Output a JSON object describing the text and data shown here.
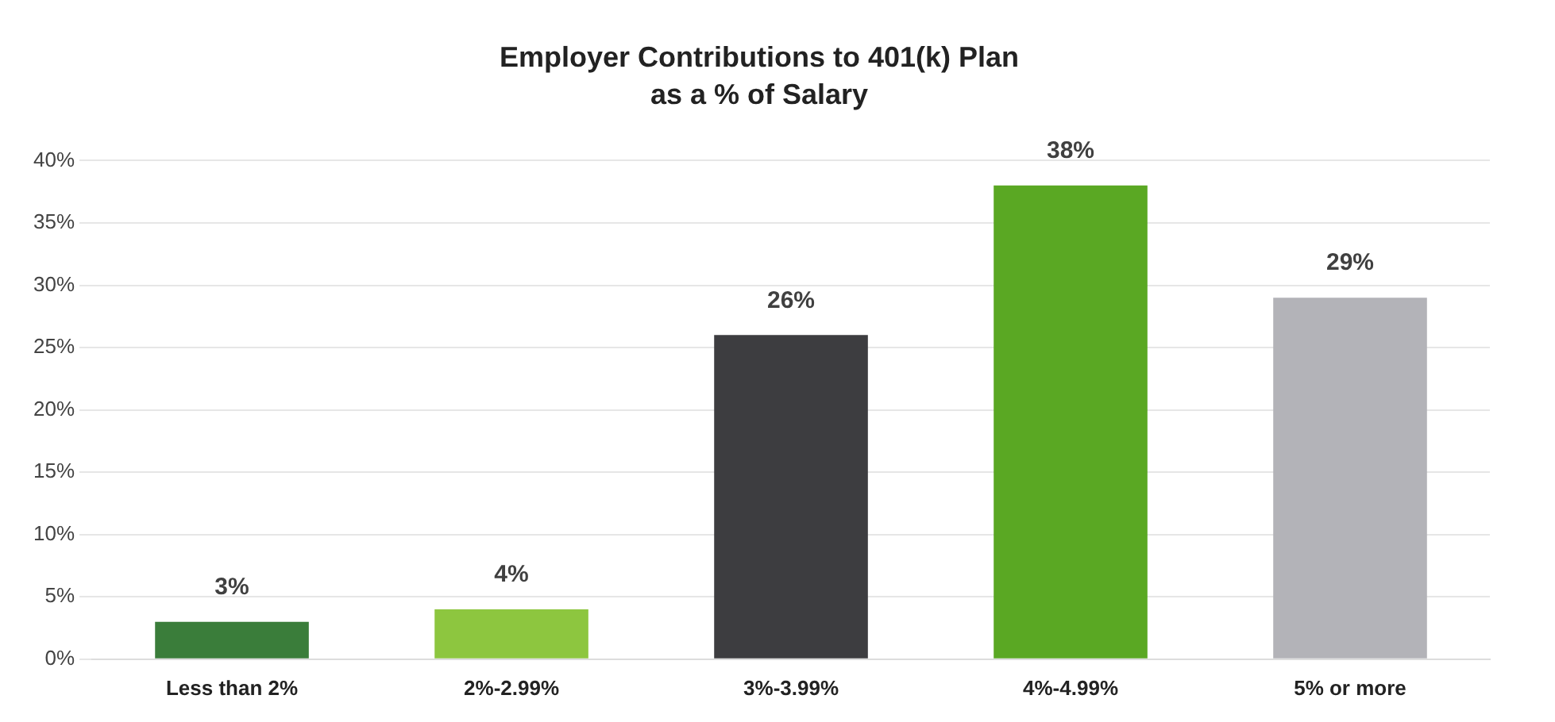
{
  "chart_data": {
    "type": "bar",
    "title": "Employer Contributions to 401(k) Plan",
    "subtitle": "as a % of Salary",
    "categories": [
      "Less than 2%",
      "2%-2.99%",
      "3%-3.99%",
      "4%-4.99%",
      "5% or more"
    ],
    "values": [
      3,
      4,
      26,
      38,
      29
    ],
    "colors": [
      "#3a7d3a",
      "#8dc63f",
      "#3d3d40",
      "#5aa823",
      "#b3b3b8"
    ],
    "value_labels": [
      "3%",
      "4%",
      "26%",
      "38%",
      "29%"
    ],
    "ylim": [
      0,
      40
    ],
    "yticks": [
      {
        "value": 0,
        "label": "0%"
      },
      {
        "value": 5,
        "label": "5%"
      },
      {
        "value": 10,
        "label": "10%"
      },
      {
        "value": 15,
        "label": "15%"
      },
      {
        "value": 20,
        "label": "20%"
      },
      {
        "value": 25,
        "label": "25%"
      },
      {
        "value": 30,
        "label": "30%"
      },
      {
        "value": 35,
        "label": "35%"
      },
      {
        "value": 40,
        "label": "40%"
      }
    ],
    "grid": "y",
    "legend": false
  }
}
